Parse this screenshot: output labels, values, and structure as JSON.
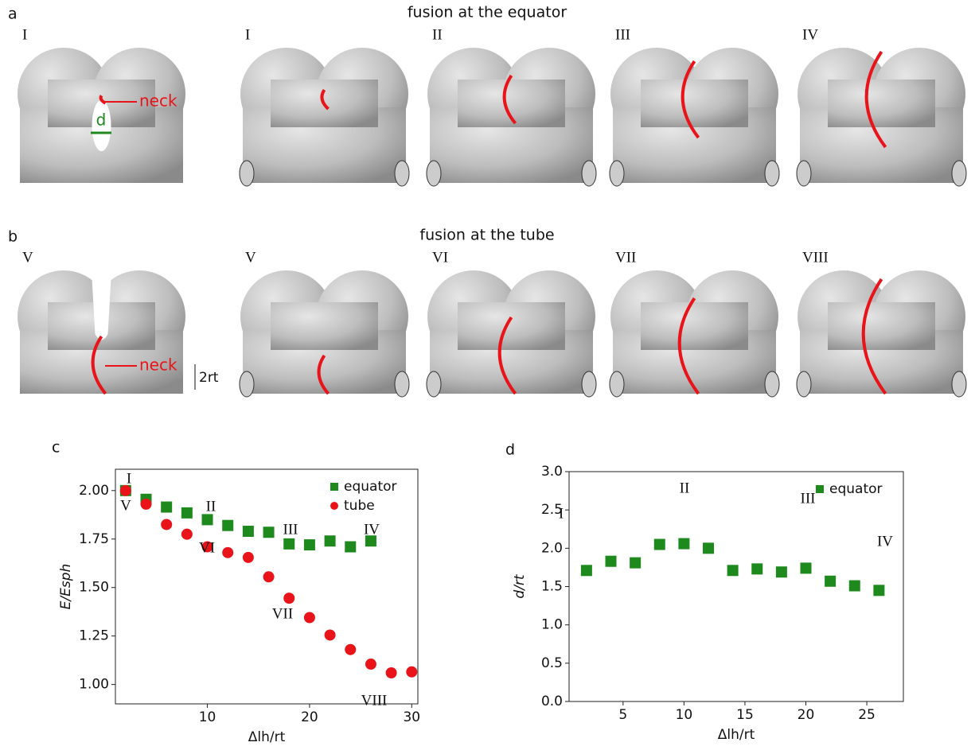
{
  "figure": {
    "panels": [
      {
        "label": "a",
        "title": "fusion at the equator",
        "stages": [
          "I",
          "I",
          "II",
          "III",
          "IV"
        ],
        "annotations": [
          "neck",
          "d"
        ]
      },
      {
        "label": "b",
        "title": "fusion at the tube",
        "stages": [
          "V",
          "V",
          "VI",
          "VII",
          "VIII"
        ],
        "annotations": [
          "neck",
          "2rt"
        ]
      }
    ]
  },
  "chart_data": [
    {
      "type": "scatter",
      "panel": "c",
      "xlabel": "Δlh/rt",
      "ylabel": "E/Esph",
      "xlim": [
        1,
        30.6
      ],
      "ylim": [
        0.9,
        2.11
      ],
      "xticks": [
        10,
        20,
        30
      ],
      "yticks": [
        {
          "value": 1,
          "label": "1.00"
        },
        {
          "value": 1.25,
          "label": "1.25"
        },
        {
          "value": 1.5,
          "label": "1.50"
        },
        {
          "value": 1.75,
          "label": "1.75"
        },
        {
          "value": 2,
          "label": "2.00"
        }
      ],
      "legend": "upper right",
      "series": [
        {
          "name": "equator",
          "color": "#1e8a1e",
          "marker": "square",
          "x": [
            2,
            4,
            6,
            8,
            10,
            12,
            14,
            16,
            18,
            20,
            22,
            24,
            26
          ],
          "values": [
            2.0,
            1.955,
            1.915,
            1.885,
            1.85,
            1.82,
            1.79,
            1.785,
            1.725,
            1.72,
            1.74,
            1.71,
            1.74
          ]
        },
        {
          "name": "tube",
          "color": "#e8141a",
          "marker": "circle",
          "x": [
            2,
            4,
            6,
            8,
            10,
            12,
            14,
            16,
            18,
            20,
            22,
            24,
            26,
            28,
            30
          ],
          "values": [
            2.0,
            1.93,
            1.825,
            1.775,
            1.71,
            1.68,
            1.655,
            1.555,
            1.445,
            1.345,
            1.255,
            1.18,
            1.105,
            1.06,
            1.065
          ]
        }
      ],
      "annotations": [
        "I",
        "V",
        "II",
        "III",
        "IV",
        "VI",
        "VII",
        "VIII"
      ]
    },
    {
      "type": "scatter",
      "panel": "d",
      "xlabel": "Δlh/rt",
      "ylabel": "d/rt",
      "xlim": [
        0.57,
        28
      ],
      "ylim": [
        0,
        3
      ],
      "xticks": [
        5,
        10,
        15,
        20,
        25
      ],
      "yticks": [
        {
          "value": 0,
          "label": "0.0"
        },
        {
          "value": 0.5,
          "label": "0.5"
        },
        {
          "value": 1,
          "label": "1.0"
        },
        {
          "value": 1.5,
          "label": "1.5"
        },
        {
          "value": 2,
          "label": "2.0"
        },
        {
          "value": 2.5,
          "label": "2.5"
        },
        {
          "value": 3,
          "label": "3.0"
        }
      ],
      "legend": "upper right",
      "series": [
        {
          "name": "equator",
          "color": "#1e8a1e",
          "marker": "square",
          "x": [
            2,
            4,
            6,
            8,
            10,
            12,
            14,
            16,
            18,
            20,
            22,
            24,
            26
          ],
          "values": [
            1.71,
            1.83,
            1.81,
            2.05,
            2.06,
            2.0,
            1.71,
            1.73,
            1.69,
            1.74,
            1.57,
            1.51,
            1.45
          ]
        }
      ],
      "annotations": [
        "I",
        "II",
        "III",
        "IV"
      ]
    }
  ]
}
